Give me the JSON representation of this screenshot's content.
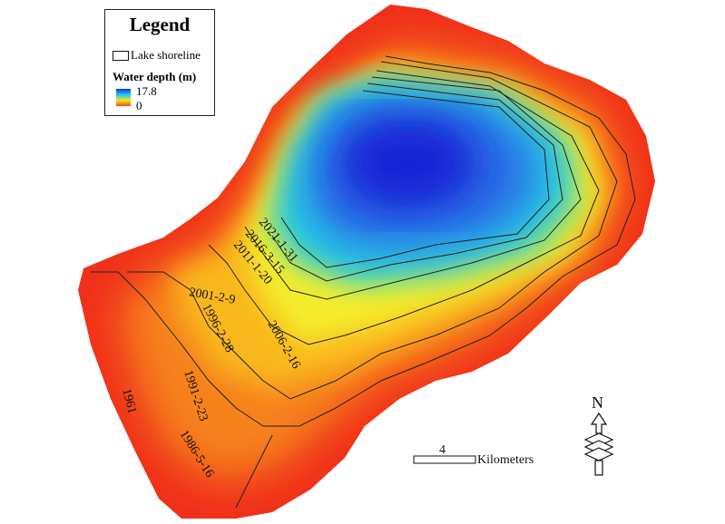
{
  "legend": {
    "title": "Legend",
    "shoreline_label": "Lake shoreline",
    "depth_title": "Water depth (m)",
    "depth_max": "17.8",
    "depth_min": "0",
    "ramp_colors": [
      "#1a2ee0",
      "#19c8f0",
      "#f7e61c",
      "#f24a14"
    ]
  },
  "shoreline_labels": [
    "2021-1-31",
    "2016-3-15",
    "2011-1-20",
    "2001-2-9",
    "1996-2-28",
    "2006-2-16",
    "1991-2-23",
    "1986-5-16",
    "1961"
  ],
  "scale_bar": {
    "value": "4",
    "unit": "Kilometers"
  },
  "north_arrow": {
    "label": "N"
  }
}
